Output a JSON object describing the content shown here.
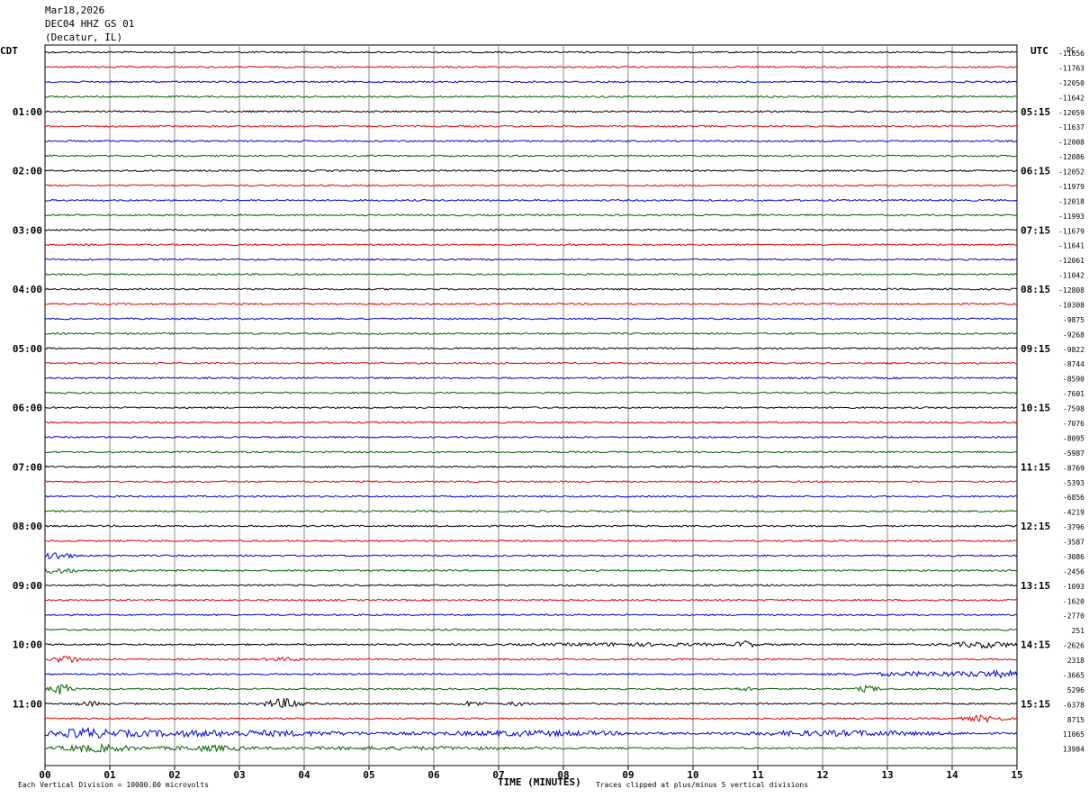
{
  "header": {
    "date": "Mar18,2026",
    "station": "DEC04 HHZ GS 01",
    "location": "(Decatur, IL)"
  },
  "left_timezone": "CDT",
  "right_timezone": "UTC",
  "dc_header": "DC",
  "footer": {
    "left": "Each Vertical Division = 10000.00 microvolts",
    "center": "TIME (MINUTES)",
    "right": "Traces clipped at plus/minus 5 vertical divisions"
  },
  "colors": {
    "trace_cycle": [
      "#000000",
      "#e00000",
      "#0000d0",
      "#006000"
    ],
    "grid": "#888888"
  },
  "chart_data": {
    "type": "line",
    "title": "DEC04 HHZ GS 01",
    "xlabel": "TIME (MINUTES)",
    "ylabel": "",
    "xlim": [
      0,
      15
    ],
    "x_ticks": [
      "00",
      "01",
      "02",
      "03",
      "04",
      "05",
      "06",
      "07",
      "08",
      "09",
      "10",
      "11",
      "12",
      "13",
      "14",
      "15"
    ],
    "left_time_labels": [
      "01:00",
      "02:00",
      "03:00",
      "04:00",
      "05:00",
      "06:00",
      "07:00",
      "08:00",
      "09:00",
      "10:00",
      "11:00"
    ],
    "right_time_labels": [
      "05:15",
      "06:15",
      "07:15",
      "08:15",
      "09:15",
      "10:15",
      "11:15",
      "12:15",
      "13:15",
      "14:15",
      "15:15"
    ],
    "trace_count": 48,
    "dc_offsets": [
      "-11656",
      "-11763",
      "-12050",
      "-11642",
      "-12059",
      "-11637",
      "-12008",
      "-12086",
      "-12052",
      "-11979",
      "-12018",
      "-11993",
      "-11679",
      "-11641",
      "-12061",
      "-11042",
      "-12808",
      "-10308",
      "-9875",
      "-9268",
      "-9822",
      "-8744",
      "-8590",
      "-7601",
      "-7598",
      "-7076",
      "-8095",
      "-5987",
      "-8769",
      "-5393",
      "-6856",
      "-4219",
      "-3796",
      "-3587",
      "-3086",
      "-2456",
      "-1093",
      "-1620",
      "-2770",
      "251",
      "-2626",
      "2318",
      "-3665",
      "5296",
      "-6378",
      "8715",
      "11065",
      "13984"
    ]
  }
}
